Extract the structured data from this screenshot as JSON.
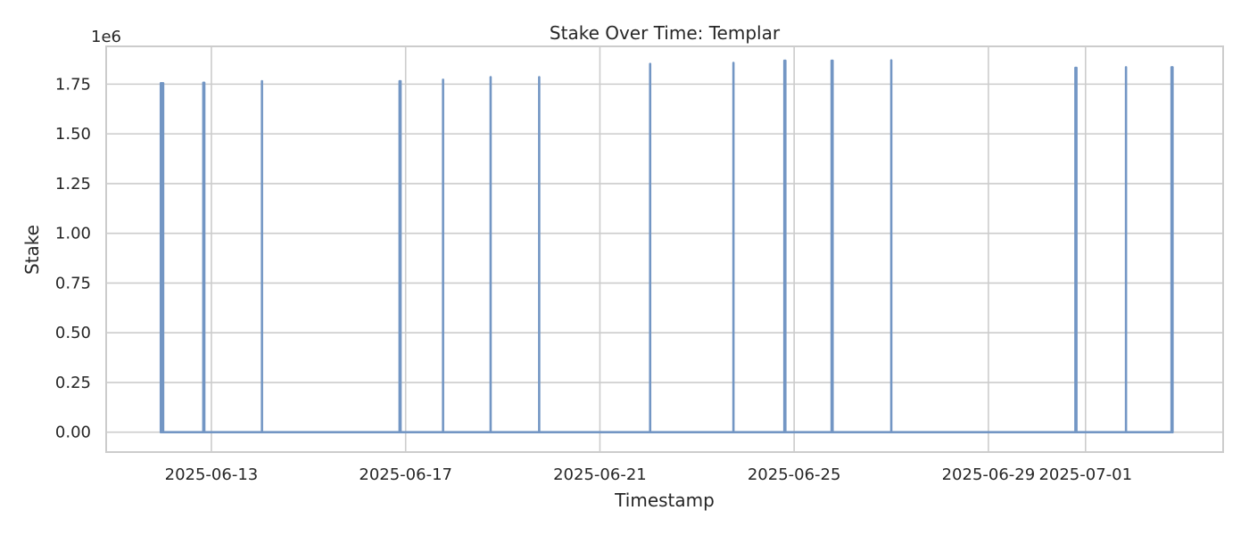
{
  "chart_data": {
    "type": "line",
    "title": "Stake Over Time: Templar",
    "xlabel": "Timestamp",
    "ylabel": "Stake",
    "y_offset_label": "1e6",
    "grid": true,
    "line_color": "#7396c4",
    "xlim": [
      "2025-06-10T20:00",
      "2025-07-03T20:00"
    ],
    "ylim": [
      -0.1,
      1.94
    ],
    "x_ticks": [
      {
        "value": "2025-06-13",
        "label": "2025-06-13"
      },
      {
        "value": "2025-06-17",
        "label": "2025-06-17"
      },
      {
        "value": "2025-06-21",
        "label": "2025-06-21"
      },
      {
        "value": "2025-06-25",
        "label": "2025-06-25"
      },
      {
        "value": "2025-06-29",
        "label": "2025-06-29"
      },
      {
        "value": "2025-07-01",
        "label": "2025-07-01"
      }
    ],
    "y_ticks": [
      {
        "value": 0.0,
        "label": "0.00"
      },
      {
        "value": 0.25,
        "label": "0.25"
      },
      {
        "value": 0.5,
        "label": "0.50"
      },
      {
        "value": 0.75,
        "label": "0.75"
      },
      {
        "value": 1.0,
        "label": "1.00"
      },
      {
        "value": 1.25,
        "label": "1.25"
      },
      {
        "value": 1.5,
        "label": "1.50"
      },
      {
        "value": 1.75,
        "label": "1.75"
      }
    ],
    "series": [
      {
        "values": [
          {
            "x": "2025-06-11T23:00",
            "y": 1.755
          },
          {
            "x": "2025-06-11T23:30",
            "y": 1.755
          },
          {
            "x": "2025-06-12T00:10",
            "y": 1.755
          },
          {
            "x": "2025-06-12T20:00",
            "y": 1.757
          },
          {
            "x": "2025-06-12T20:30",
            "y": 1.757
          },
          {
            "x": "2025-06-14T01:00",
            "y": 1.765
          },
          {
            "x": "2025-06-16T21:00",
            "y": 1.765
          },
          {
            "x": "2025-06-16T21:30",
            "y": 1.765
          },
          {
            "x": "2025-06-17T18:30",
            "y": 1.772
          },
          {
            "x": "2025-06-18T18:00",
            "y": 1.785
          },
          {
            "x": "2025-06-19T18:00",
            "y": 1.785
          },
          {
            "x": "2025-06-22T00:50",
            "y": 1.852
          },
          {
            "x": "2025-06-23T18:00",
            "y": 1.857
          },
          {
            "x": "2025-06-24T19:10",
            "y": 1.868
          },
          {
            "x": "2025-06-24T19:40",
            "y": 1.868
          },
          {
            "x": "2025-06-25T18:30",
            "y": 1.868
          },
          {
            "x": "2025-06-25T19:00",
            "y": 1.868
          },
          {
            "x": "2025-06-27T00:00",
            "y": 1.87
          },
          {
            "x": "2025-06-30T19:00",
            "y": 1.832
          },
          {
            "x": "2025-06-30T19:30",
            "y": 1.832
          },
          {
            "x": "2025-07-01T20:00",
            "y": 1.835
          },
          {
            "x": "2025-07-02T18:30",
            "y": 1.835
          },
          {
            "x": "2025-07-02T19:00",
            "y": 1.835
          }
        ]
      }
    ]
  }
}
